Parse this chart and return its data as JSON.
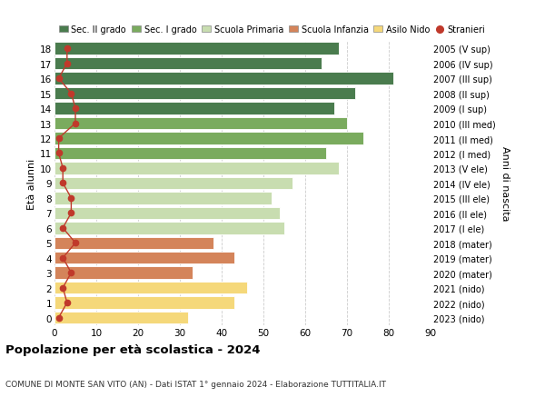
{
  "ages": [
    18,
    17,
    16,
    15,
    14,
    13,
    12,
    11,
    10,
    9,
    8,
    7,
    6,
    5,
    4,
    3,
    2,
    1,
    0
  ],
  "years": [
    "2005 (V sup)",
    "2006 (IV sup)",
    "2007 (III sup)",
    "2008 (II sup)",
    "2009 (I sup)",
    "2010 (III med)",
    "2011 (II med)",
    "2012 (I med)",
    "2013 (V ele)",
    "2014 (IV ele)",
    "2015 (III ele)",
    "2016 (II ele)",
    "2017 (I ele)",
    "2018 (mater)",
    "2019 (mater)",
    "2020 (mater)",
    "2021 (nido)",
    "2022 (nido)",
    "2023 (nido)"
  ],
  "values": [
    68,
    64,
    81,
    72,
    67,
    70,
    74,
    65,
    68,
    57,
    52,
    54,
    55,
    38,
    43,
    33,
    46,
    43,
    32
  ],
  "stranieri": [
    3,
    3,
    1,
    4,
    5,
    5,
    1,
    1,
    2,
    2,
    4,
    4,
    2,
    5,
    2,
    4,
    2,
    3,
    1
  ],
  "bar_colors": [
    "#4a7c4e",
    "#4a7c4e",
    "#4a7c4e",
    "#4a7c4e",
    "#4a7c4e",
    "#7aab5e",
    "#7aab5e",
    "#7aab5e",
    "#c8ddb0",
    "#c8ddb0",
    "#c8ddb0",
    "#c8ddb0",
    "#c8ddb0",
    "#d4845a",
    "#d4845a",
    "#d4845a",
    "#f5d87a",
    "#f5d87a",
    "#f5d87a"
  ],
  "legend_labels": [
    "Sec. II grado",
    "Sec. I grado",
    "Scuola Primaria",
    "Scuola Infanzia",
    "Asilo Nido",
    "Stranieri"
  ],
  "legend_colors": [
    "#4a7c4e",
    "#7aab5e",
    "#c8ddb0",
    "#d4845a",
    "#f5d87a",
    "#c0392b"
  ],
  "stranieri_color": "#c0392b",
  "title": "Popolazione per età scolastica - 2024",
  "subtitle": "COMUNE DI MONTE SAN VITO (AN) - Dati ISTAT 1° gennaio 2024 - Elaborazione TUTTITALIA.IT",
  "ylabel": "Età alunni",
  "y2label": "Anni di nascita",
  "xlabel_ticks": [
    0,
    10,
    20,
    30,
    40,
    50,
    60,
    70,
    80,
    90
  ],
  "xlim": [
    0,
    90
  ],
  "background_color": "#ffffff",
  "bar_height": 0.82
}
